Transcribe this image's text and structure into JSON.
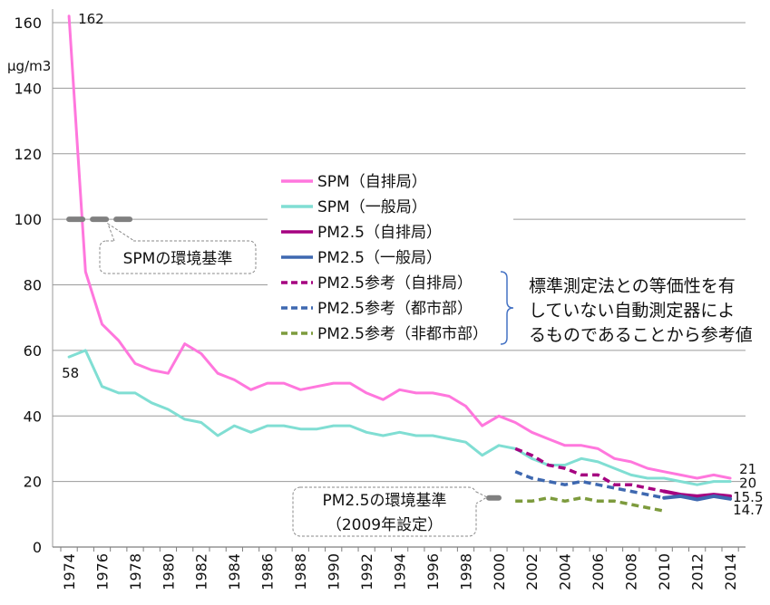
{
  "chart_data": {
    "type": "line",
    "ylabel": "μg/m3",
    "x": [
      1974,
      1975,
      1976,
      1977,
      1978,
      1979,
      1980,
      1981,
      1982,
      1983,
      1984,
      1985,
      1986,
      1987,
      1988,
      1989,
      1990,
      1991,
      1992,
      1993,
      1994,
      1995,
      1996,
      1997,
      1998,
      1999,
      2000,
      2001,
      2002,
      2003,
      2004,
      2005,
      2006,
      2007,
      2008,
      2009,
      2010,
      2011,
      2012,
      2013,
      2014
    ],
    "x_tick_labels": [
      "1974",
      "1976",
      "1978",
      "1980",
      "1982",
      "1984",
      "1986",
      "1988",
      "1990",
      "1992",
      "1994",
      "1996",
      "1998",
      "2000",
      "2002",
      "2004",
      "2006",
      "2008",
      "2010",
      "2012",
      "2014"
    ],
    "y_ticks": [
      0,
      20,
      40,
      60,
      80,
      100,
      120,
      140,
      160
    ],
    "ylim": [
      0,
      160
    ],
    "grid": true,
    "legend_position": "center",
    "series": [
      {
        "name": "SPM（自排局）",
        "color": "#FF77DD",
        "line_style": "solid",
        "values": [
          162,
          84,
          68,
          63,
          56,
          54,
          53,
          62,
          59,
          53,
          51,
          48,
          50,
          50,
          48,
          49,
          50,
          50,
          47,
          45,
          48,
          47,
          47,
          46,
          43,
          37,
          40,
          38,
          35,
          33,
          31,
          31,
          30,
          27,
          26,
          24,
          23,
          22,
          21,
          22,
          21
        ]
      },
      {
        "name": "SPM（一般局）",
        "color": "#80DED3",
        "line_style": "solid",
        "values": [
          58,
          60,
          49,
          47,
          47,
          44,
          42,
          39,
          38,
          34,
          37,
          35,
          37,
          37,
          36,
          36,
          37,
          37,
          35,
          34,
          35,
          34,
          34,
          33,
          32,
          28,
          31,
          30,
          27,
          25,
          25,
          27,
          26,
          24,
          22,
          21,
          21,
          20,
          19,
          20,
          20
        ]
      },
      {
        "name": "PM2.5（自排局）",
        "color": "#A50080",
        "line_style": "solid",
        "x": [
          2010,
          2011,
          2012,
          2013,
          2014
        ],
        "values": [
          17,
          16,
          15.5,
          16,
          15.5
        ]
      },
      {
        "name": "PM2.5（一般局）",
        "color": "#3E68B0",
        "line_style": "solid",
        "x": [
          2010,
          2011,
          2012,
          2013,
          2014
        ],
        "values": [
          15,
          15.5,
          14.5,
          15.5,
          14.7
        ]
      },
      {
        "name": "PM2.5参考（自排局）",
        "color": "#A50080",
        "line_style": "dashed",
        "x": [
          2001,
          2002,
          2003,
          2004,
          2005,
          2006,
          2007,
          2008,
          2009,
          2010
        ],
        "values": [
          30,
          28,
          25,
          24,
          22,
          22,
          19,
          19,
          18,
          17
        ]
      },
      {
        "name": "PM2.5参考（都市部）",
        "color": "#3E68B0",
        "line_style": "dashed",
        "x": [
          2001,
          2002,
          2003,
          2004,
          2005,
          2006,
          2007,
          2008,
          2009,
          2010
        ],
        "values": [
          23,
          21,
          20,
          19,
          20,
          19,
          18,
          17,
          16,
          15
        ]
      },
      {
        "name": "PM2.5参考（非都市部）",
        "color": "#7D9B3D",
        "line_style": "dashed",
        "x": [
          2001,
          2002,
          2003,
          2004,
          2005,
          2006,
          2007,
          2008,
          2009,
          2010
        ],
        "values": [
          14,
          14,
          15,
          14,
          15,
          14,
          14,
          13,
          12,
          11
        ]
      }
    ],
    "data_labels": [
      {
        "text": "162",
        "series": "SPM（自排局）",
        "x": 1974
      },
      {
        "text": "58",
        "series": "SPM（一般局）",
        "x": 1974
      },
      {
        "text": "21",
        "series": "SPM（自排局）",
        "x": 2014
      },
      {
        "text": "20",
        "series": "SPM（一般局）",
        "x": 2014
      },
      {
        "text": "15.5",
        "series": "PM2.5（自排局）",
        "x": 2014
      },
      {
        "text": "14.7",
        "series": "PM2.5（一般局）",
        "x": 2014
      }
    ],
    "reference_lines": [
      {
        "label_lines": [
          "SPMの環境基準"
        ],
        "value": 100,
        "x_range": [
          1974,
          1978
        ],
        "color": "#808080"
      },
      {
        "label_lines": [
          "PM2.5の環境基準",
          "（2009年設定）"
        ],
        "value": 15,
        "x_range": [
          1999.4,
          2000
        ],
        "color": "#808080"
      }
    ],
    "annotation": {
      "lines": [
        "標準測定法との等価性を有",
        "していない自動測定器によ",
        "るものであることから参考値"
      ],
      "bracket_color": "#4472C4"
    }
  }
}
